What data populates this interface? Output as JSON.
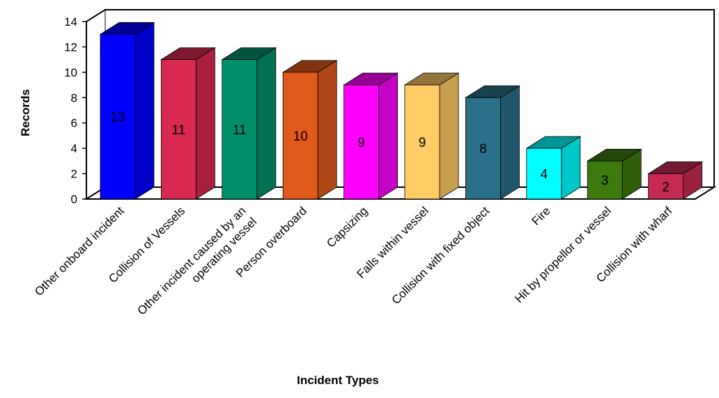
{
  "chart_data": {
    "type": "bar",
    "title": "",
    "xlabel": "Incident Types",
    "ylabel": "Records",
    "ylim": [
      0,
      14
    ],
    "yticks": [
      0,
      2,
      4,
      6,
      8,
      10,
      12,
      14
    ],
    "grid": false,
    "categories": [
      "Other onboard incident",
      "Collision of Vessels",
      "Other incident caused by an operating vessel",
      "Person overboard",
      "Capsizing",
      "Falls within vessel",
      "Collision with fixed object",
      "Fire",
      "Hit by propellor or vessel",
      "Collision with wharf"
    ],
    "values": [
      13,
      11,
      11,
      10,
      9,
      9,
      8,
      4,
      3,
      2
    ],
    "colors": [
      "#0000ff",
      "#d9294f",
      "#008f6b",
      "#e05a1c",
      "#ff00ff",
      "#ffcc66",
      "#2a7089",
      "#00ffff",
      "#3d7a0e",
      "#c52a52"
    ]
  }
}
